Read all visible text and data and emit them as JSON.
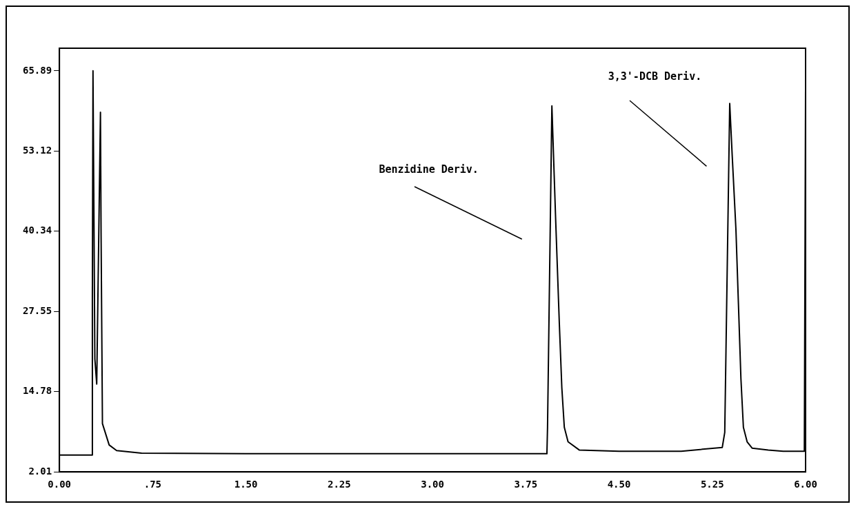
{
  "chart_data": {
    "type": "line",
    "x": [
      0,
      0.26,
      0.265,
      0.27,
      0.285,
      0.3,
      0.33,
      0.335,
      0.346,
      0.4,
      0.46,
      0.66,
      1.5,
      2.5,
      3.5,
      3.92,
      3.925,
      3.96,
      3.99,
      4.02,
      4.04,
      4.06,
      4.09,
      4.18,
      4.5,
      5.0,
      5.33,
      5.35,
      5.39,
      5.41,
      5.44,
      5.46,
      5.48,
      5.5,
      5.53,
      5.57,
      5.7,
      5.82,
      5.99,
      6.0
    ],
    "series": [
      {
        "color": "#000000",
        "values": [
          4.7,
          4.7,
          30.0,
          65.9,
          20.0,
          16.0,
          59.3,
          40.0,
          9.7,
          6.3,
          5.4,
          5.0,
          4.9,
          4.9,
          4.9,
          4.9,
          9.1,
          60.3,
          42.4,
          25.6,
          15.4,
          9.1,
          6.8,
          5.5,
          5.3,
          5.3,
          5.9,
          8.3,
          60.7,
          52.4,
          40.6,
          28.8,
          16.9,
          9.1,
          6.8,
          5.8,
          5.5,
          5.3,
          5.3,
          63.7
        ]
      }
    ],
    "xlim": [
      0,
      6
    ],
    "ylim": [
      2.01,
      69.5
    ],
    "xticks": [
      {
        "value": 0,
        "label": "0.00"
      },
      {
        "value": 0.75,
        "label": ".75"
      },
      {
        "value": 1.5,
        "label": "1.50"
      },
      {
        "value": 2.25,
        "label": "2.25"
      },
      {
        "value": 3,
        "label": "3.00"
      },
      {
        "value": 3.75,
        "label": "3.75"
      },
      {
        "value": 4.5,
        "label": "4.50"
      },
      {
        "value": 5.25,
        "label": "5.25"
      },
      {
        "value": 6,
        "label": "6.00"
      }
    ],
    "yticks": [
      2.01,
      14.78,
      27.55,
      40.34,
      53.12,
      65.89
    ],
    "annotations": [
      "Benzidine Deriv.",
      "3,3'-DCB Deriv."
    ],
    "grid": false,
    "legend": false,
    "marker": "none",
    "line_style": "solid"
  }
}
